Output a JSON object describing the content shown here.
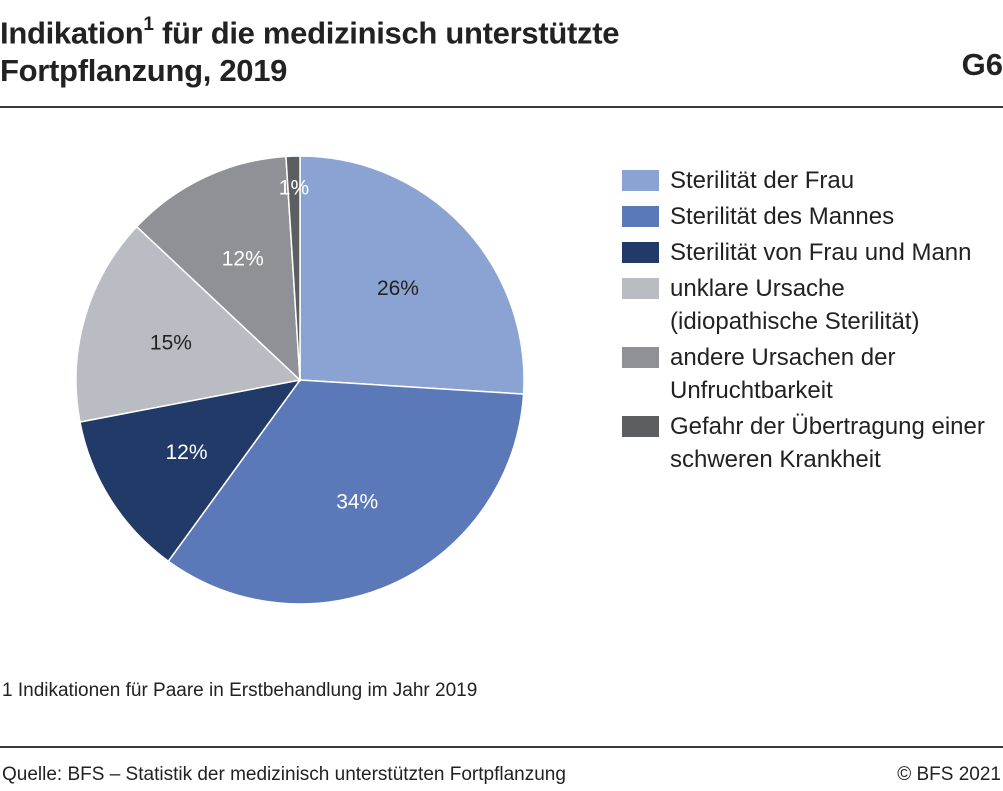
{
  "header": {
    "title_part1": "Indikation",
    "title_sup": "1",
    "title_part2": " für die medizinisch unterstützte",
    "title_line2": "Fortpflanzung, 2019",
    "chart_id": "G6"
  },
  "footnote": "1 Indikationen für Paare in Erstbehandlung im Jahr 2019",
  "footer": {
    "source": "Quelle: BFS – Statistik der medizinisch unterstützten Fortpflanzung",
    "copyright": "© BFS 2021"
  },
  "chart_data": {
    "type": "pie",
    "title": "Indikation für die medizinisch unterstützte Fortpflanzung, 2019",
    "start_angle_deg": 0,
    "direction": "clockwise",
    "legend_position": "right",
    "slices": [
      {
        "label": "Sterilität der Frau",
        "value": 26,
        "display": "26%",
        "color": "#8aa3d3",
        "label_color": "#222222"
      },
      {
        "label": "Sterilität des Mannes",
        "value": 34,
        "display": "34%",
        "color": "#5b79b8",
        "label_color": "#ffffff"
      },
      {
        "label": "Sterilität von Frau und Mann",
        "value": 12,
        "display": "12%",
        "color": "#213a68",
        "label_color": "#ffffff"
      },
      {
        "label": "unklare Ursache (idiopathische Sterilität)",
        "value": 15,
        "display": "15%",
        "color": "#b9bcc2",
        "label_color": "#222222"
      },
      {
        "label": "andere Ursachen der Unfruchtbarkeit",
        "value": 12,
        "display": "12%",
        "color": "#8f9196",
        "label_color": "#ffffff"
      },
      {
        "label": "Gefahr der Übertragung einer schweren Krankheit",
        "value": 1,
        "display": "1%",
        "color": "#5d5e62",
        "label_color": "#ffffff"
      }
    ]
  }
}
